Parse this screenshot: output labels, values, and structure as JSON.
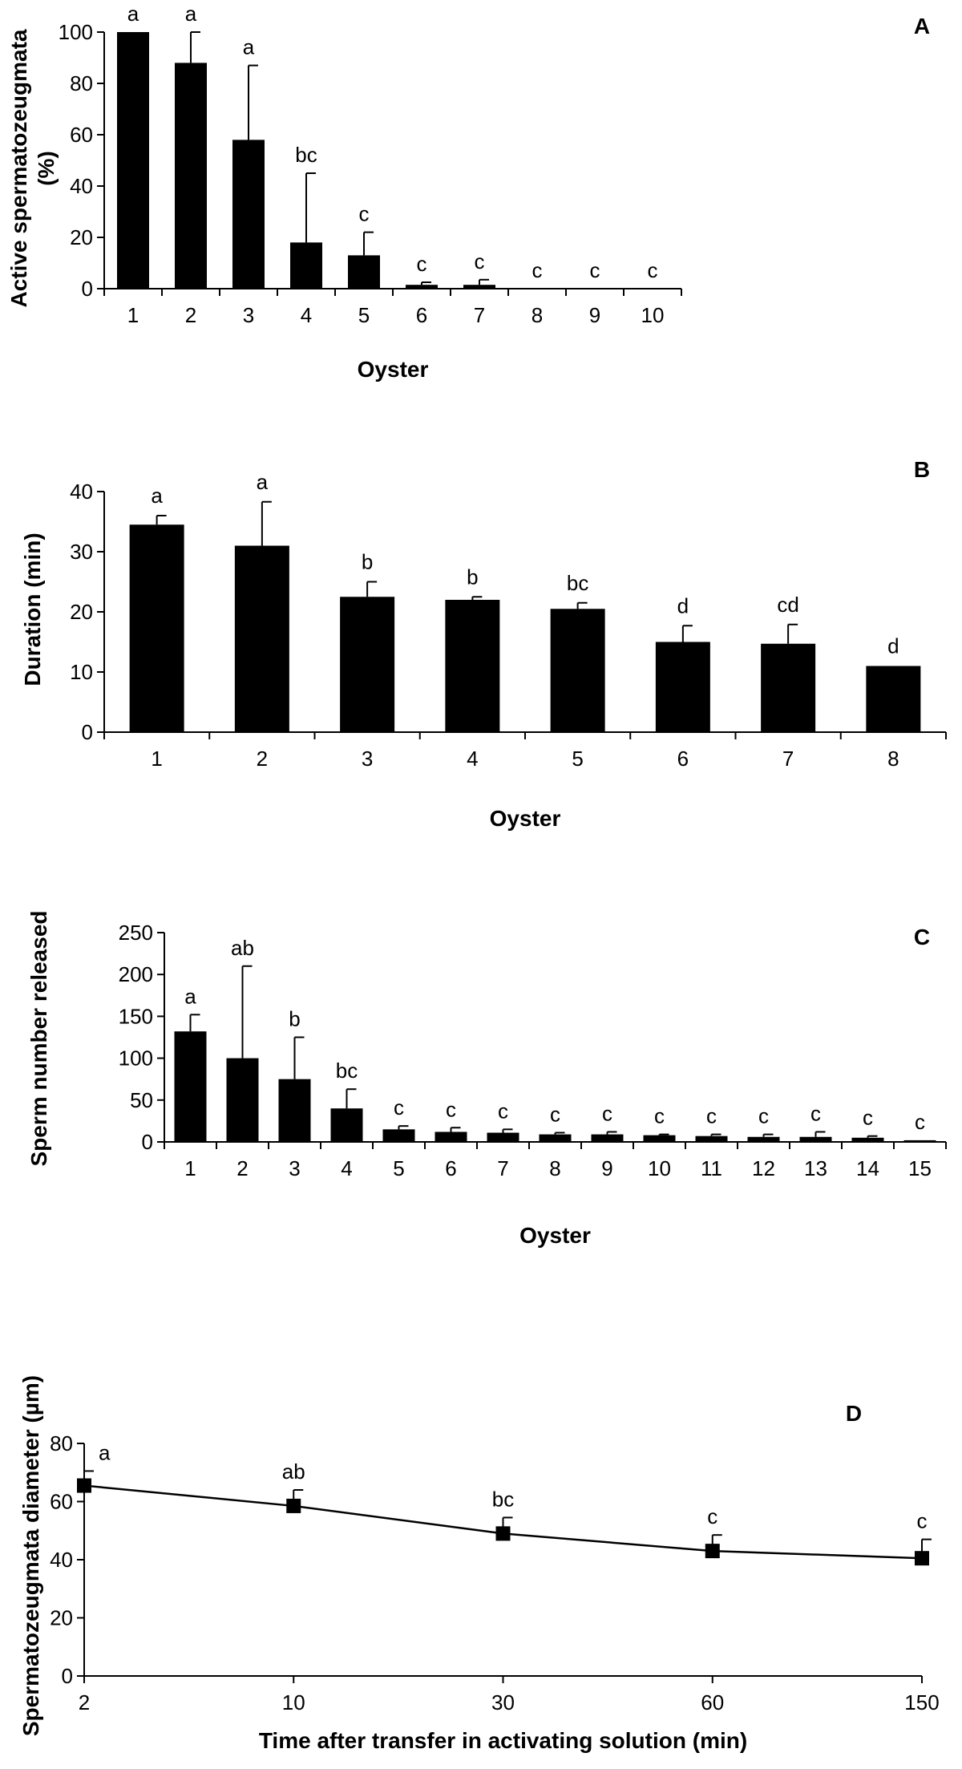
{
  "chart_data": [
    {
      "panel": "A",
      "type": "bar",
      "xlabel": "Oyster",
      "ylabel_lines": [
        "Active spermatozeugmata",
        "(%)"
      ],
      "ylim": [
        0,
        100
      ],
      "yticks": [
        0,
        20,
        40,
        60,
        80,
        100
      ],
      "categories": [
        "1",
        "2",
        "3",
        "4",
        "5",
        "6",
        "7",
        "8",
        "9",
        "10"
      ],
      "values": [
        100,
        88,
        58,
        18,
        13,
        1.5,
        1.5,
        0,
        0,
        0
      ],
      "errors": [
        0,
        12,
        29,
        27,
        9,
        1,
        2,
        0,
        0,
        0
      ],
      "letters": [
        "a",
        "a",
        "a",
        "bc",
        "c",
        "c",
        "c",
        "c",
        "c",
        "c"
      ],
      "bar_color": "#000000"
    },
    {
      "panel": "B",
      "type": "bar",
      "xlabel": "Oyster",
      "ylabel_lines": [
        "Duration (min)"
      ],
      "ylim": [
        0,
        40
      ],
      "yticks": [
        0,
        10,
        20,
        30,
        40
      ],
      "categories": [
        "1",
        "2",
        "3",
        "4",
        "5",
        "6",
        "7",
        "8"
      ],
      "values": [
        34.5,
        31,
        22.5,
        22,
        20.5,
        15,
        14.7,
        11
      ],
      "errors": [
        1.5,
        7.3,
        2.5,
        0.5,
        1,
        2.7,
        3.2,
        0
      ],
      "letters": [
        "a",
        "a",
        "b",
        "b",
        "bc",
        "d",
        "cd",
        "d"
      ],
      "bar_color": "#000000"
    },
    {
      "panel": "C",
      "type": "bar",
      "xlabel": "Oyster",
      "ylabel_lines": [
        "Sperm number released"
      ],
      "ylim": [
        0,
        250
      ],
      "yticks": [
        0,
        50,
        100,
        150,
        200,
        250
      ],
      "categories": [
        "1",
        "2",
        "3",
        "4",
        "5",
        "6",
        "7",
        "8",
        "9",
        "10",
        "11",
        "12",
        "13",
        "14",
        "15"
      ],
      "values": [
        132,
        100,
        75,
        40,
        15,
        12,
        11,
        9,
        9,
        8,
        7,
        6,
        6,
        5,
        2
      ],
      "errors": [
        20,
        110,
        50,
        23,
        4,
        5,
        4,
        2,
        3,
        1,
        2,
        3,
        6,
        2,
        0
      ],
      "letters": [
        "a",
        "ab",
        "b",
        "bc",
        "c",
        "c",
        "c",
        "c",
        "c",
        "c",
        "c",
        "c",
        "c",
        "c",
        "c"
      ],
      "bar_color": "#000000"
    },
    {
      "panel": "D",
      "type": "line",
      "xlabel": "Time after transfer in activating solution (min)",
      "ylabel_lines": [
        "Spermatozeugmata diameter (µm)"
      ],
      "ylim": [
        0,
        80
      ],
      "yticks": [
        0,
        20,
        40,
        60,
        80
      ],
      "categories": [
        "2",
        "10",
        "30",
        "60",
        "150"
      ],
      "values": [
        65.5,
        58.5,
        49,
        43,
        40.5
      ],
      "errors": [
        5,
        5.5,
        5.5,
        5.5,
        6.5
      ],
      "letters": [
        "a",
        "ab",
        "bc",
        "c",
        "c"
      ],
      "line_color": "#000000"
    }
  ]
}
